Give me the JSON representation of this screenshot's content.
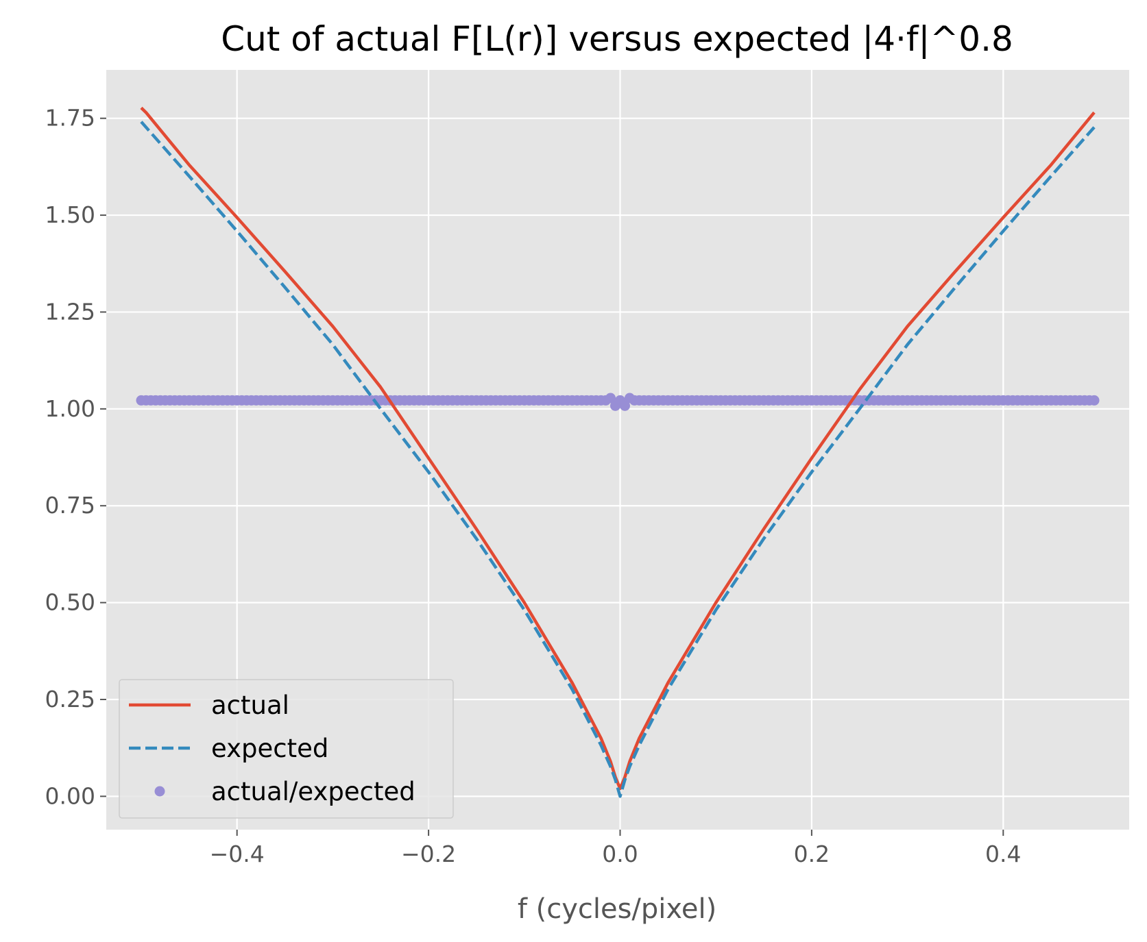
{
  "chart_data": {
    "type": "line",
    "title": "Cut of actual F[L(r)] versus expected |4·f|^0.8",
    "xlabel": "f (cycles/pixel)",
    "ylabel": "",
    "xlim": [
      -0.5365,
      0.5315
    ],
    "ylim": [
      -0.086,
      1.875
    ],
    "xticks": [
      -0.4,
      -0.2,
      0.0,
      0.2,
      0.4
    ],
    "xtick_labels": [
      "−0.4",
      "−0.2",
      "0.0",
      "0.2",
      "0.4"
    ],
    "yticks": [
      0.0,
      0.25,
      0.5,
      0.75,
      1.0,
      1.25,
      1.5,
      1.75
    ],
    "ytick_labels": [
      "0.00",
      "0.25",
      "0.50",
      "0.75",
      "1.00",
      "1.25",
      "1.50",
      "1.75"
    ],
    "grid": true,
    "legend_position": "lower-left",
    "background": "#e5e5e5",
    "series": [
      {
        "name": "actual",
        "style": "solid",
        "color": "#e24a33",
        "x": [
          -0.5,
          -0.495,
          -0.45,
          -0.4,
          -0.35,
          -0.3,
          -0.25,
          -0.2,
          -0.15,
          -0.1,
          -0.05,
          -0.02,
          -0.01,
          -0.005,
          0.0,
          0.005,
          0.01,
          0.02,
          0.05,
          0.1,
          0.15,
          0.2,
          0.25,
          0.3,
          0.35,
          0.4,
          0.45,
          0.495
        ],
        "y": [
          1.777,
          1.765,
          1.63,
          1.494,
          1.355,
          1.213,
          1.056,
          0.873,
          0.69,
          0.5,
          0.293,
          0.15,
          0.09,
          0.05,
          0.02,
          0.05,
          0.09,
          0.15,
          0.293,
          0.5,
          0.69,
          0.873,
          1.05,
          1.213,
          1.355,
          1.494,
          1.63,
          1.765
        ]
      },
      {
        "name": "expected",
        "style": "dashed",
        "color": "#348abd",
        "x": [
          -0.5,
          -0.45,
          -0.4,
          -0.35,
          -0.3,
          -0.25,
          -0.2,
          -0.15,
          -0.1,
          -0.05,
          -0.02,
          -0.01,
          -0.005,
          0.0,
          0.005,
          0.01,
          0.02,
          0.05,
          0.1,
          0.15,
          0.2,
          0.25,
          0.3,
          0.35,
          0.4,
          0.45,
          0.495
        ],
        "y": [
          1.741,
          1.601,
          1.459,
          1.314,
          1.166,
          1.0,
          0.837,
          0.665,
          0.481,
          0.276,
          0.132,
          0.077,
          0.043,
          0.0,
          0.043,
          0.077,
          0.132,
          0.276,
          0.481,
          0.665,
          0.837,
          1.0,
          1.166,
          1.314,
          1.459,
          1.601,
          1.727
        ]
      },
      {
        "name": "actual/expected",
        "style": "markers",
        "color": "#988ed5",
        "x_range": [
          -0.5,
          0.495
        ],
        "x_step": 0.005,
        "y_default": 1.022,
        "y_special": [
          {
            "x": -0.01,
            "y": 1.028
          },
          {
            "x": -0.005,
            "y": 1.008
          },
          {
            "x": 0.005,
            "y": 1.008
          },
          {
            "x": 0.01,
            "y": 1.028
          }
        ]
      }
    ]
  }
}
